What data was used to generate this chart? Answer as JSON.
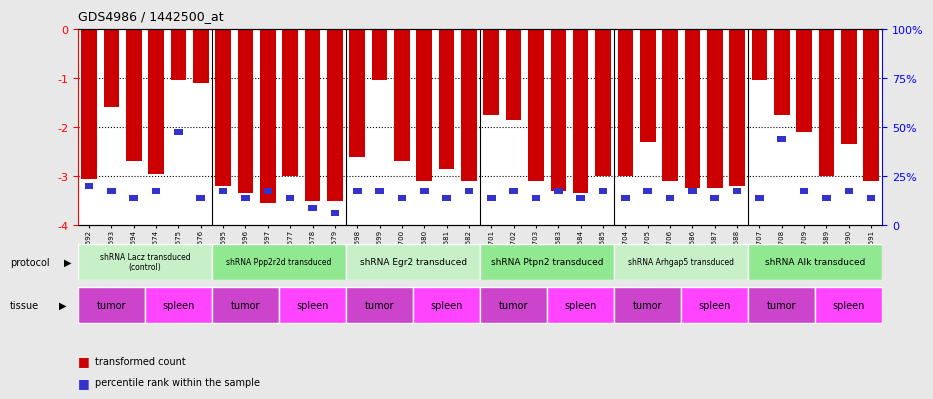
{
  "title": "GDS4986 / 1442500_at",
  "samples": [
    "GSM1290692",
    "GSM1290693",
    "GSM1290694",
    "GSM1290674",
    "GSM1290675",
    "GSM1290676",
    "GSM1290695",
    "GSM1290696",
    "GSM1290697",
    "GSM1290677",
    "GSM1290678",
    "GSM1290679",
    "GSM1290698",
    "GSM1290699",
    "GSM1290700",
    "GSM1290680",
    "GSM1290681",
    "GSM1290682",
    "GSM1290701",
    "GSM1290702",
    "GSM1290703",
    "GSM1290683",
    "GSM1290684",
    "GSM1290685",
    "GSM1290704",
    "GSM1290705",
    "GSM1290706",
    "GSM1290686",
    "GSM1290687",
    "GSM1290688",
    "GSM1290707",
    "GSM1290708",
    "GSM1290709",
    "GSM1290689",
    "GSM1290690",
    "GSM1290691"
  ],
  "red_values": [
    -3.05,
    -1.6,
    -2.7,
    -2.95,
    -1.05,
    -1.1,
    -3.2,
    -3.35,
    -3.55,
    -3.0,
    -3.5,
    -3.5,
    -2.6,
    -1.05,
    -2.7,
    -3.1,
    -2.85,
    -3.1,
    -1.75,
    -1.85,
    -3.1,
    -3.3,
    -3.35,
    -3.0,
    -3.0,
    -2.3,
    -3.1,
    -3.25,
    -3.25,
    -3.2,
    -1.05,
    -1.75,
    -2.1,
    -3.0,
    -2.35,
    -3.1
  ],
  "blue_positions": [
    -3.2,
    -3.3,
    -3.45,
    -3.3,
    -2.1,
    -3.45,
    -3.3,
    -3.45,
    -3.3,
    -3.45,
    -3.65,
    -3.75,
    -3.3,
    -3.3,
    -3.45,
    -3.3,
    -3.45,
    -3.3,
    -3.45,
    -3.3,
    -3.45,
    -3.3,
    -3.45,
    -3.3,
    -3.45,
    -3.3,
    -3.45,
    -3.3,
    -3.45,
    -3.3,
    -3.45,
    -2.25,
    -3.3,
    -3.45,
    -3.3,
    -3.45
  ],
  "protocols": [
    {
      "label": "shRNA Lacz transduced\n(control)",
      "start": 0,
      "end": 6,
      "color": "#c8f0c8"
    },
    {
      "label": "shRNA Ppp2r2d transduced",
      "start": 6,
      "end": 12,
      "color": "#90e890"
    },
    {
      "label": "shRNA Egr2 transduced",
      "start": 12,
      "end": 18,
      "color": "#c8f0c8"
    },
    {
      "label": "shRNA Ptpn2 transduced",
      "start": 18,
      "end": 24,
      "color": "#90e890"
    },
    {
      "label": "shRNA Arhgap5 transduced",
      "start": 24,
      "end": 30,
      "color": "#c8f0c8"
    },
    {
      "label": "shRNA Alk transduced",
      "start": 30,
      "end": 36,
      "color": "#90e890"
    }
  ],
  "tissues": [
    {
      "label": "tumor",
      "start": 0,
      "end": 3
    },
    {
      "label": "spleen",
      "start": 3,
      "end": 6
    },
    {
      "label": "tumor",
      "start": 6,
      "end": 9
    },
    {
      "label": "spleen",
      "start": 9,
      "end": 12
    },
    {
      "label": "tumor",
      "start": 12,
      "end": 15
    },
    {
      "label": "spleen",
      "start": 15,
      "end": 18
    },
    {
      "label": "tumor",
      "start": 18,
      "end": 21
    },
    {
      "label": "spleen",
      "start": 21,
      "end": 24
    },
    {
      "label": "tumor",
      "start": 24,
      "end": 27
    },
    {
      "label": "spleen",
      "start": 27,
      "end": 30
    },
    {
      "label": "tumor",
      "start": 30,
      "end": 33
    },
    {
      "label": "spleen",
      "start": 33,
      "end": 36
    }
  ],
  "ylim": [
    -4.0,
    0.0
  ],
  "yticks": [
    0,
    -1,
    -2,
    -3,
    -4
  ],
  "bar_color_red": "#cc0000",
  "bar_color_blue": "#3333cc",
  "bg_color": "#e8e8e8",
  "plot_bg": "#ffffff",
  "tumor_color": "#cc44cc",
  "spleen_color": "#ff44ff"
}
